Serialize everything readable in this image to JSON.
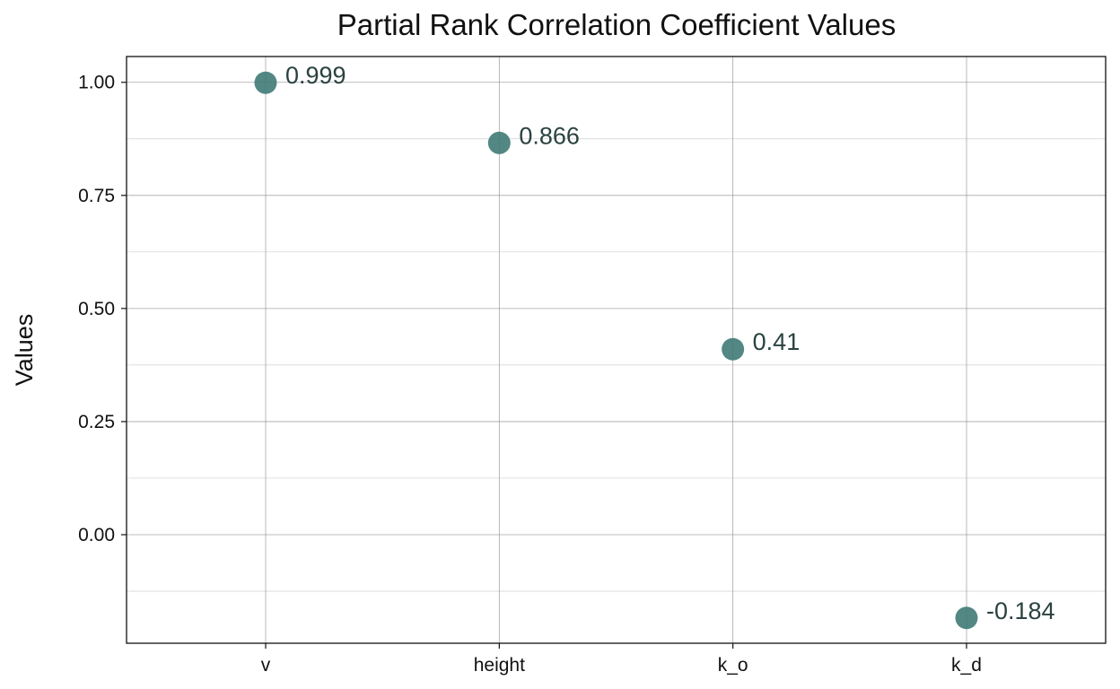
{
  "chart_data": {
    "type": "scatter",
    "title": "Partial Rank Correlation Coefficient Values",
    "xlabel": "",
    "ylabel": "Values",
    "categories": [
      "v",
      "height",
      "k_o",
      "k_d"
    ],
    "values": [
      0.999,
      0.866,
      0.41,
      -0.184
    ],
    "data_labels": [
      "0.999",
      "0.866",
      "0.41",
      "-0.184"
    ],
    "y_ticks": [
      0.0,
      0.25,
      0.5,
      0.75,
      1.0
    ],
    "y_tick_labels": [
      "0.00",
      "0.25",
      "0.50",
      "0.75",
      "1.00"
    ],
    "ylim": [
      -0.24,
      1.057
    ],
    "grid": true,
    "marker_color": "#3f7a76"
  }
}
